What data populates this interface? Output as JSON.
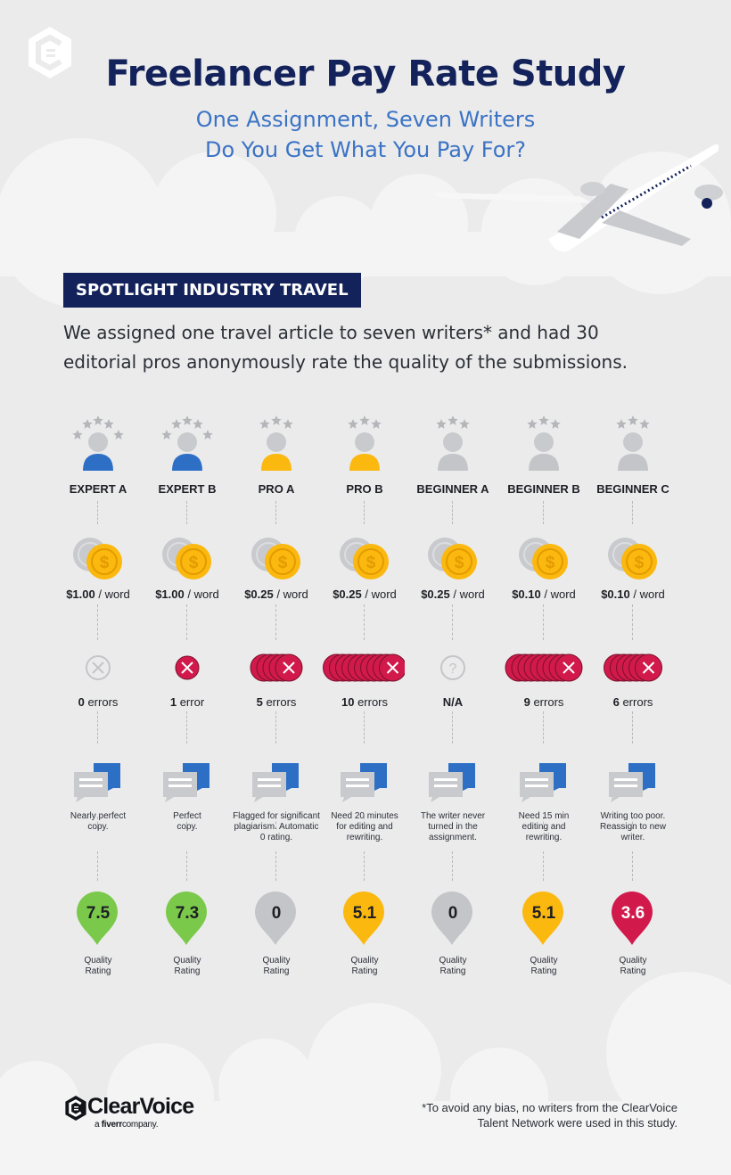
{
  "header": {
    "title": "Freelancer Pay Rate Study",
    "subtitle_line1": "One Assignment, Seven Writers",
    "subtitle_line2": "Do You Get What You Pay For?"
  },
  "badge": "SPOTLIGHT INDUSTRY TRAVEL",
  "intro_line1": "We assigned one travel article to seven writers* and had 30",
  "intro_line2": "editorial pros anonymously rate the quality of the submissions.",
  "per_word": "/ word",
  "quality_line1": "Quality",
  "quality_line2": "Rating",
  "colors": {
    "navy": "#13225a",
    "blue": "#2e6fc6",
    "yellow": "#fbb80f",
    "gray": "#c4c5c8",
    "green": "#7bc94a",
    "red": "#d11a4b",
    "coin": "#fbb80f"
  },
  "writers": [
    {
      "name": "EXPERT A",
      "person_color": "blue",
      "stars": 5,
      "rate": "$1.00",
      "errors_n": "0",
      "errors_word": "errors",
      "error_icons": 0,
      "error_state": "none",
      "note": [
        "Nearly perfect",
        "copy."
      ],
      "rating": "7.5",
      "rating_value": 7.5,
      "pin_color": "green"
    },
    {
      "name": "EXPERT B",
      "person_color": "blue",
      "stars": 5,
      "rate": "$1.00",
      "errors_n": "1",
      "errors_word": "error",
      "error_icons": 1,
      "error_state": "x",
      "note": [
        "Perfect",
        "copy."
      ],
      "rating": "7.3",
      "rating_value": 7.3,
      "pin_color": "green"
    },
    {
      "name": "PRO A",
      "person_color": "yellow",
      "stars": 3,
      "rate": "$0.25",
      "errors_n": "5",
      "errors_word": "errors",
      "error_icons": 5,
      "error_state": "x",
      "note": [
        "Flagged for significant",
        "plagiarism. Automatic",
        "0 rating."
      ],
      "rating": "0",
      "rating_value": 0,
      "pin_color": "gray"
    },
    {
      "name": "PRO B",
      "person_color": "yellow",
      "stars": 3,
      "rate": "$0.25",
      "errors_n": "10",
      "errors_word": "errors",
      "error_icons": 10,
      "error_state": "x",
      "note": [
        "Need 20 minutes",
        "for editing and",
        "rewriting."
      ],
      "rating": "5.1",
      "rating_value": 5.1,
      "pin_color": "yellow"
    },
    {
      "name": "BEGINNER A",
      "person_color": "gray",
      "stars": 3,
      "rate": "$0.25",
      "errors_n": "N/A",
      "errors_word": "",
      "error_icons": 0,
      "error_state": "unknown",
      "note": [
        "The writer never",
        "turned in the",
        "assignment."
      ],
      "rating": "0",
      "rating_value": 0,
      "pin_color": "gray"
    },
    {
      "name": "BEGINNER B",
      "person_color": "gray",
      "stars": 3,
      "rate": "$0.10",
      "errors_n": "9",
      "errors_word": "errors",
      "error_icons": 9,
      "error_state": "x",
      "note": [
        "Need 15 min",
        "editing and",
        "rewriting."
      ],
      "rating": "5.1",
      "rating_value": 5.1,
      "pin_color": "yellow"
    },
    {
      "name": "BEGINNER C",
      "person_color": "gray",
      "stars": 3,
      "rate": "$0.10",
      "errors_n": "6",
      "errors_word": "errors",
      "error_icons": 6,
      "error_state": "x",
      "note": [
        "Writing too poor.",
        "Reassign to new",
        "writer."
      ],
      "rating": "3.6",
      "rating_value": 3.6,
      "pin_color": "red"
    }
  ],
  "footnote_line1": "*To avoid any bias, no writers from the ClearVoice",
  "footnote_line2": "Talent Network were used in this study.",
  "brand": {
    "name": "ClearVoice",
    "tag_prefix": "a",
    "tag_brand": "fiverr",
    "tag_suffix": "company."
  }
}
